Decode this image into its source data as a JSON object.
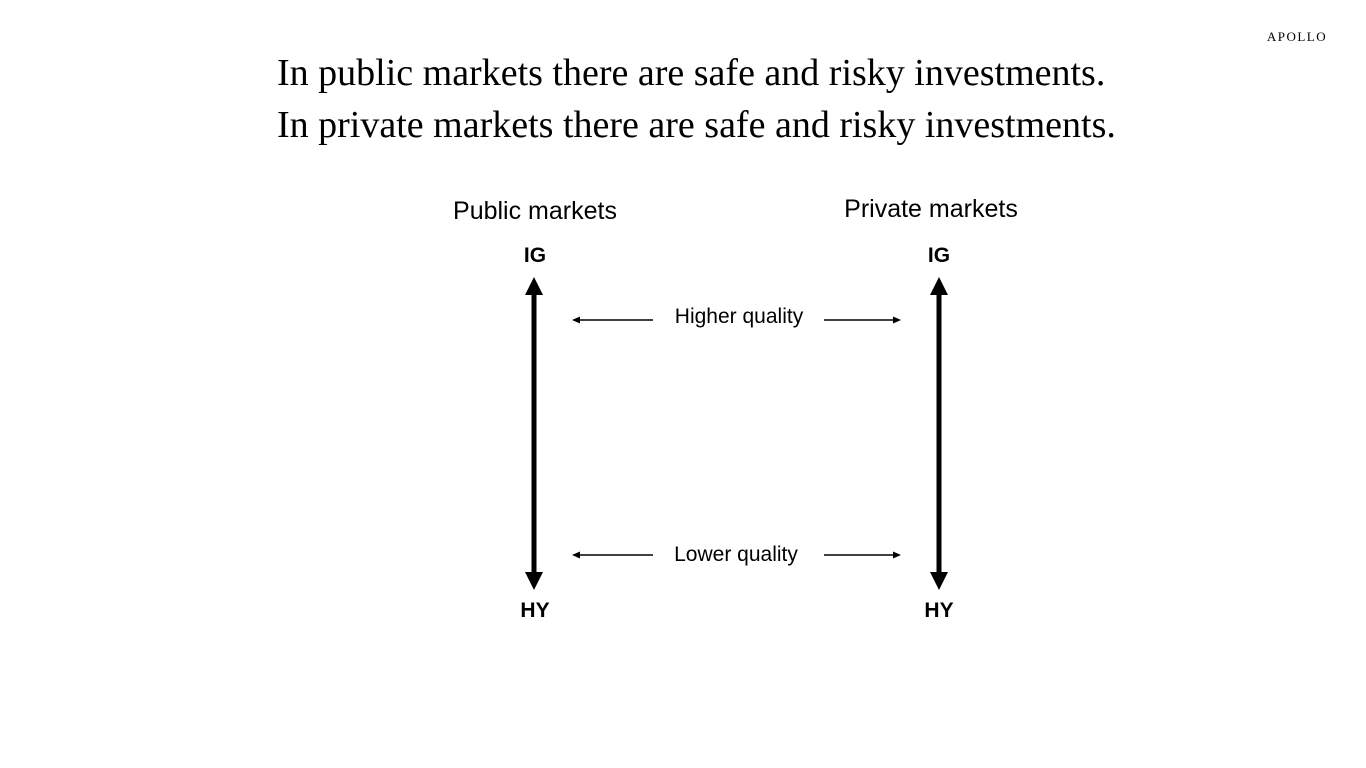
{
  "brand": {
    "logo_text": "APOLLO"
  },
  "headline": {
    "line1": "In public markets there are safe and risky investments.",
    "line2": "In private markets there are safe and risky investments."
  },
  "diagram": {
    "columns": [
      {
        "title": "Public markets",
        "top_label": "IG",
        "bottom_label": "HY"
      },
      {
        "title": "Private markets",
        "top_label": "IG",
        "bottom_label": "HY"
      }
    ],
    "connectors": [
      {
        "label": "Higher quality"
      },
      {
        "label": "Lower quality"
      }
    ]
  }
}
